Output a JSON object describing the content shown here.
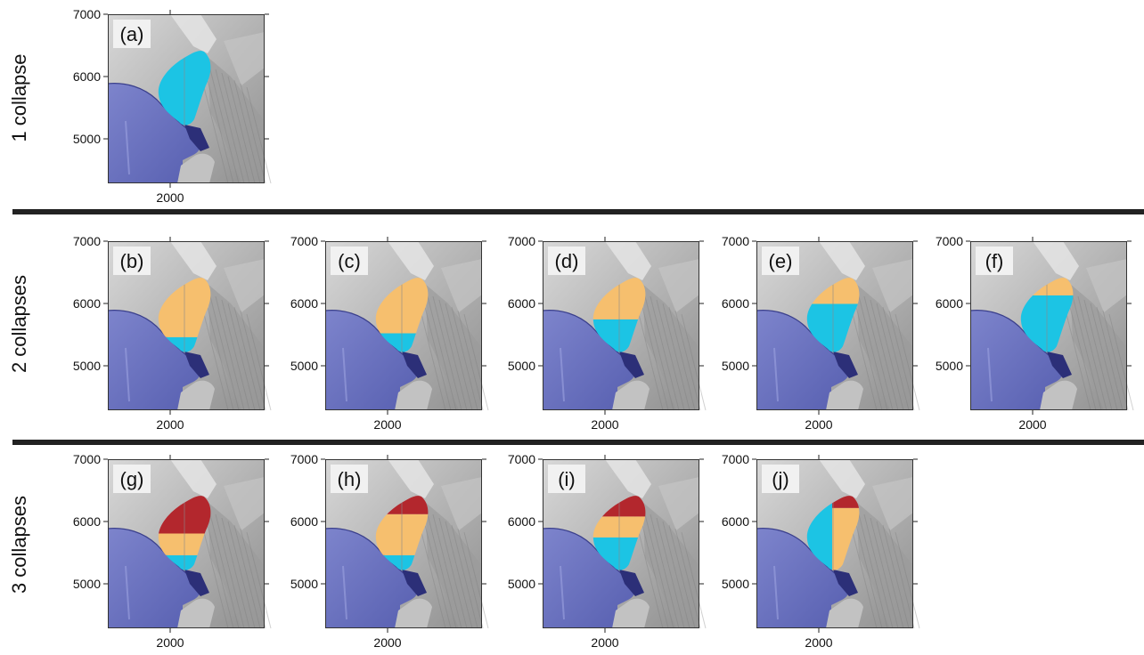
{
  "rows": [
    {
      "label": "1 collapse"
    },
    {
      "label": "2 collapses"
    },
    {
      "label": "3 collapses"
    }
  ],
  "panels": [
    {
      "id": "(a)",
      "row": 0,
      "col": 0,
      "zones": [
        {
          "from": 0.0,
          "to": 1.0,
          "color": "cyan"
        }
      ]
    },
    {
      "id": "(b)",
      "row": 1,
      "col": 0,
      "zones": [
        {
          "from": 0.0,
          "to": 0.22,
          "color": "cyan"
        },
        {
          "from": 0.22,
          "to": 1.0,
          "color": "orange"
        }
      ]
    },
    {
      "id": "(c)",
      "row": 1,
      "col": 1,
      "zones": [
        {
          "from": 0.0,
          "to": 0.27,
          "color": "cyan"
        },
        {
          "from": 0.27,
          "to": 1.0,
          "color": "orange"
        }
      ]
    },
    {
      "id": "(d)",
      "row": 1,
      "col": 2,
      "zones": [
        {
          "from": 0.0,
          "to": 0.45,
          "color": "cyan"
        },
        {
          "from": 0.45,
          "to": 1.0,
          "color": "orange"
        }
      ]
    },
    {
      "id": "(e)",
      "row": 1,
      "col": 3,
      "zones": [
        {
          "from": 0.0,
          "to": 0.65,
          "color": "cyan"
        },
        {
          "from": 0.65,
          "to": 1.0,
          "color": "orange"
        }
      ]
    },
    {
      "id": "(f)",
      "row": 1,
      "col": 4,
      "zones": [
        {
          "from": 0.0,
          "to": 0.76,
          "color": "cyan"
        },
        {
          "from": 0.76,
          "to": 1.0,
          "color": "orange"
        }
      ]
    },
    {
      "id": "(g)",
      "row": 2,
      "col": 0,
      "zones": [
        {
          "from": 0.0,
          "to": 0.22,
          "color": "cyan"
        },
        {
          "from": 0.22,
          "to": 0.5,
          "color": "orange"
        },
        {
          "from": 0.5,
          "to": 1.0,
          "color": "red"
        }
      ]
    },
    {
      "id": "(h)",
      "row": 2,
      "col": 1,
      "zones": [
        {
          "from": 0.0,
          "to": 0.22,
          "color": "cyan"
        },
        {
          "from": 0.22,
          "to": 0.75,
          "color": "orange"
        },
        {
          "from": 0.75,
          "to": 1.0,
          "color": "red"
        }
      ]
    },
    {
      "id": "(i)",
      "row": 2,
      "col": 2,
      "zones": [
        {
          "from": 0.0,
          "to": 0.45,
          "color": "cyan"
        },
        {
          "from": 0.45,
          "to": 0.72,
          "color": "orange"
        },
        {
          "from": 0.72,
          "to": 1.0,
          "color": "red"
        }
      ]
    },
    {
      "id": "(j)",
      "row": 2,
      "col": 3,
      "zones": [
        {
          "from": 0.0,
          "to": 1.0,
          "color": "cyan",
          "split": "left"
        },
        {
          "from": 0.0,
          "to": 0.83,
          "color": "orange",
          "split": "right"
        },
        {
          "from": 0.83,
          "to": 1.0,
          "color": "red",
          "split": "right"
        }
      ]
    }
  ],
  "axes": {
    "y_ticks": [
      "7000",
      "6000",
      "5000"
    ],
    "x_ticks": [
      "2000"
    ]
  },
  "colors": {
    "cyan": "#1cc4e4",
    "orange": "#f6bf6e",
    "red": "#b3272d",
    "sea": "#6c74c2",
    "terrain_light": "#cdcdcd",
    "terrain_dark": "#8f8f8f"
  }
}
